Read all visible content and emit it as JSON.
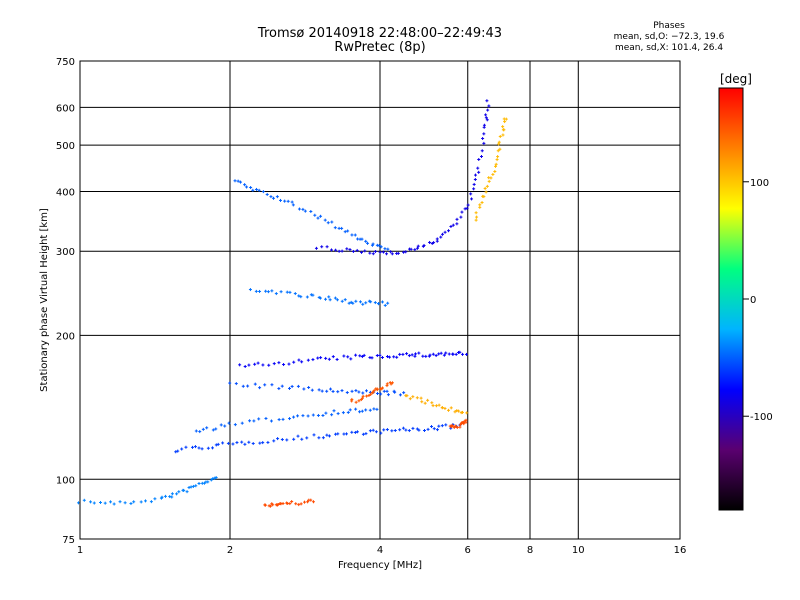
{
  "header": {
    "title_line1": "Tromsø 20140918 22:48:00–22:49:43",
    "title_line2": "RwPretec (8p)"
  },
  "phases": {
    "title": "Phases",
    "line_o": "mean, sd,O: −72.3, 19.6",
    "line_x": "mean, sd,X: 101.4, 26.4"
  },
  "chart_data": {
    "type": "scatter",
    "xlabel": "Frequency [MHz]",
    "ylabel": "Stationary phase Virtual Height [km]",
    "x_scale": "log",
    "y_scale": "log",
    "xlim": [
      1,
      16
    ],
    "ylim": [
      75,
      750
    ],
    "x_ticks": [
      1,
      2,
      4,
      6,
      8,
      10,
      16
    ],
    "y_ticks": [
      75,
      100,
      200,
      300,
      400,
      500,
      600,
      750
    ],
    "grid": true,
    "colorbar": {
      "label": "[deg]",
      "range": [
        -180,
        180
      ],
      "ticks": [
        100,
        0,
        -100
      ],
      "colors": [
        "#000000",
        "#5a0070",
        "#0000ff",
        "#00b4ff",
        "#00ff80",
        "#ffff00",
        "#ff8000",
        "#ff0000"
      ]
    },
    "series": [
      {
        "mode": "O",
        "traces": [
          {
            "x": [
              1.0,
              1.2,
              1.45,
              1.6,
              1.75,
              1.9
            ],
            "y": [
              90,
              89,
              91,
              94,
              98,
              101
            ],
            "phase": -40
          },
          {
            "x": [
              1.55,
              1.8,
              2.1,
              2.5,
              3.0,
              3.5,
              4.0,
              4.6,
              5.2,
              5.9
            ],
            "y": [
              115,
              117,
              119,
              121,
              123,
              125,
              126,
              127,
              128,
              130
            ],
            "phase": -60
          },
          {
            "x": [
              1.7,
              2.0,
              2.5,
              3.0,
              3.5,
              4.0
            ],
            "y": [
              126,
              130,
              134,
              137,
              139,
              140
            ],
            "phase": -50
          },
          {
            "x": [
              2.0,
              2.5,
              3.0,
              3.5,
              4.0,
              4.5
            ],
            "y": [
              158,
              156,
              154,
              152,
              152,
              151
            ],
            "phase": -55
          },
          {
            "x": [
              2.1,
              2.5,
              3.0,
              3.5,
              4.0,
              4.5,
              5.0,
              5.5,
              6.0
            ],
            "y": [
              172,
              175,
              178,
              180,
              181,
              182,
              182,
              183,
              183
            ],
            "phase": -80
          },
          {
            "x": [
              2.05,
              2.3,
              2.6,
              3.0,
              3.4,
              3.8,
              4.2
            ],
            "y": [
              420,
              400,
              380,
              355,
              330,
              312,
              302
            ],
            "phase": -50
          },
          {
            "x": [
              2.2,
              2.6,
              3.0,
              3.4,
              3.8,
              4.2
            ],
            "y": [
              250,
              245,
              240,
              236,
              234,
              232
            ],
            "phase": -45
          },
          {
            "x": [
              3.0,
              3.5,
              4.0,
              4.5,
              5.0,
              5.5,
              6.0,
              6.3,
              6.5,
              6.6
            ],
            "y": [
              305,
              300,
              298,
              300,
              310,
              330,
              370,
              440,
              540,
              630
            ],
            "phase": -85
          }
        ]
      },
      {
        "mode": "X",
        "traces": [
          {
            "x": [
              2.35,
              2.5,
              2.7,
              3.0
            ],
            "y": [
              88,
              89,
              89,
              90
            ],
            "phase": 150
          },
          {
            "x": [
              3.5,
              3.8,
              4.0,
              4.3
            ],
            "y": [
              145,
              150,
              155,
              160
            ],
            "phase": 145
          },
          {
            "x": [
              5.5,
              5.8,
              6.0
            ],
            "y": [
              128,
              130,
              132
            ],
            "phase": 150
          },
          {
            "x": [
              6.2,
              6.5,
              6.8,
              7.0,
              7.2
            ],
            "y": [
              350,
              400,
              450,
              520,
              580
            ],
            "phase": 105
          },
          {
            "x": [
              4.5,
              5.0,
              5.5,
              6.0
            ],
            "y": [
              150,
              145,
              140,
              138
            ],
            "phase": 110
          }
        ]
      }
    ]
  }
}
